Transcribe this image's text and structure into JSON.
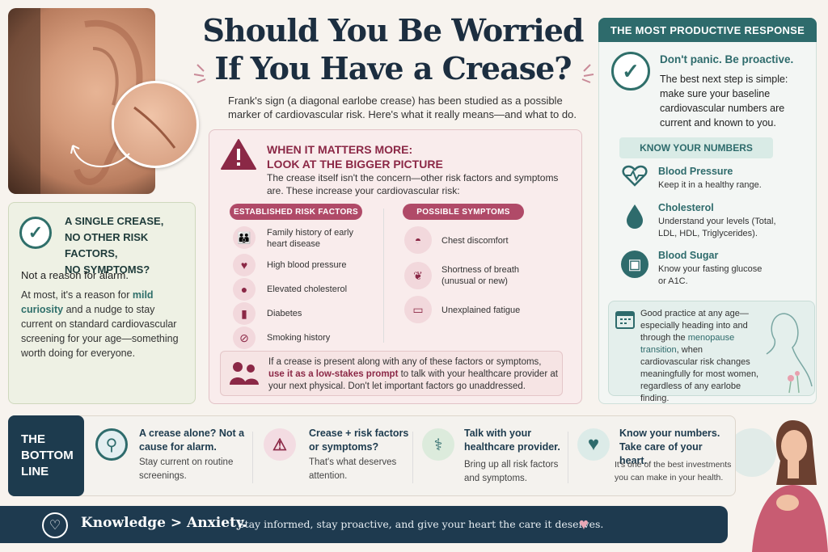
{
  "title_line1": "Should You Be Worried",
  "title_line2": "If You Have a Crease?",
  "intro": "Frank's sign (a diagonal earlobe crease) has been studied as a possible marker of cardiovascular risk. Here's what it really means—and what to do.",
  "left_card": {
    "heading": [
      "A SINGLE CREASE,",
      "NO OTHER RISK FACTORS,",
      "NO SYMPTOMS?"
    ],
    "sub": "Not a reason for alarm.",
    "body_pre": "At most, it's a reason for ",
    "body_bold": "mild curiosity",
    "body_post": " and a nudge to stay current on standard cardiovascular screening for your age—something worth doing for everyone."
  },
  "middle_card": {
    "heading1": "WHEN IT MATTERS MORE:",
    "heading2": "LOOK AT THE BIGGER PICTURE",
    "text": "The crease itself isn't the concern—other risk factors and symptoms are. These increase your cardiovascular risk:",
    "risk_title": "ESTABLISHED RISK FACTORS",
    "risks": [
      "Family history of early heart disease",
      "High blood pressure",
      "Elevated cholesterol",
      "Diabetes",
      "Smoking history"
    ],
    "symptom_title": "POSSIBLE SYMPTOMS",
    "symptoms": [
      "Chest discomfort",
      "Shortness of breath (unusual or new)",
      "Unexplained fatigue"
    ],
    "prompt_pre": "If a crease is present along with any of these factors or symptoms, ",
    "prompt_bold": "use it as a low-stakes prompt",
    "prompt_post": " to talk with your healthcare provider at your next physical. Don't let important factors go unaddressed."
  },
  "right_card": {
    "banner": "THE MOST PRODUCTIVE RESPONSE",
    "heading": "Don't panic. Be proactive.",
    "text": "The best next step is simple: make sure your baseline cardiovascular numbers are current and known to you.",
    "kyn": "KNOW YOUR NUMBERS",
    "numbers": [
      {
        "title": "Blood Pressure",
        "desc": "Keep it in a healthy range."
      },
      {
        "title": "Cholesterol",
        "desc": "Understand your levels (Total, LDL, HDL, Triglycerides)."
      },
      {
        "title": "Blood Sugar",
        "desc": "Know your fasting glucose or A1C."
      }
    ],
    "good_pre": "Good practice at any age—especially heading into and through the ",
    "good_bold": "menopause transition",
    "good_post": ", when cardiovascular risk changes meaningfully for most women, regardless of any earlobe finding."
  },
  "bottom": {
    "tag": [
      "THE",
      "BOTTOM",
      "LINE"
    ],
    "items": [
      {
        "head": "A crease alone? Not a cause for alarm.",
        "desc": "Stay current on routine screenings."
      },
      {
        "head": "Crease + risk factors or symptoms?",
        "desc": "That's what deserves attention."
      },
      {
        "head": "Talk with your healthcare provider.",
        "desc": "Bring up all risk factors and symptoms."
      },
      {
        "head": "Know your numbers. Take care of your heart.",
        "desc": "It's one of the best investments you can make in your health."
      }
    ]
  },
  "footer": {
    "big": "Knowledge > Anxiety.",
    "small": "Stay informed, stay proactive, and give your heart the care it deserves."
  },
  "colors": {
    "teal": "#2e6b6c",
    "navy": "#1d3b4e",
    "burgundy": "#8b2846",
    "rose": "#b04a68"
  }
}
